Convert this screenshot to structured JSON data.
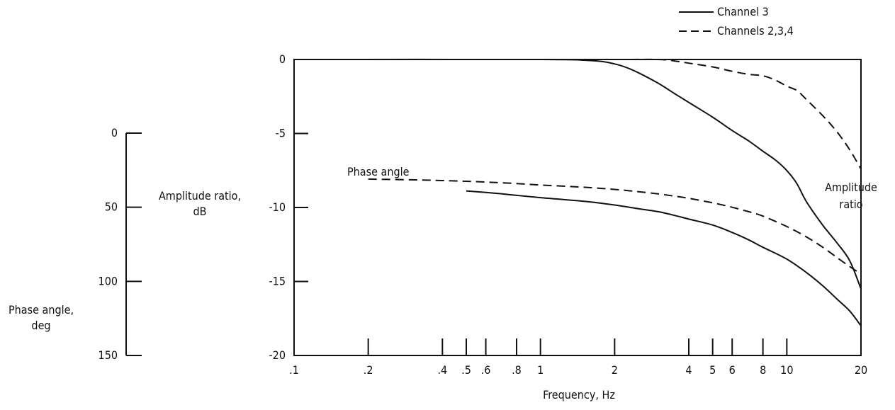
{
  "chart_data": {
    "type": "line",
    "legend": {
      "placement": "top-right",
      "entries": [
        {
          "label": "Channel 3",
          "style": "solid"
        },
        {
          "label": "Channels 2,3,4",
          "style": "dashed"
        }
      ]
    },
    "x_axis": {
      "label": "Frequency, Hz",
      "scale": "log",
      "range": [
        0.1,
        20
      ],
      "ticks": [
        0.1,
        0.2,
        0.4,
        0.5,
        0.6,
        0.8,
        1,
        2,
        4,
        5,
        6,
        8,
        10,
        20
      ],
      "tick_labels": [
        ".1",
        ".2",
        ".4",
        ".5",
        ".6",
        ".8",
        "1",
        "2",
        "4",
        "5",
        "6",
        "8",
        "10",
        "20"
      ]
    },
    "y_axis_amplitude": {
      "label_line1": "Amplitude ratio,",
      "label_line2": "dB",
      "range": [
        -20,
        0
      ],
      "ticks": [
        0,
        -5,
        -10,
        -15,
        -20
      ],
      "tick_labels": [
        "0",
        "-5",
        "-10",
        "-15",
        "-20"
      ]
    },
    "y_axis_phase": {
      "label_line1": "Phase angle,",
      "label_line2": "deg",
      "range": [
        0,
        150
      ],
      "ticks": [
        0,
        50,
        100,
        150
      ],
      "tick_labels": [
        "0",
        "50",
        "100",
        "150"
      ]
    },
    "annotations": {
      "phase_angle": "Phase angle",
      "amplitude_line1": "Amplitude",
      "amplitude_line2": "ratio"
    },
    "series": [
      {
        "name": "Channel 3",
        "quantity": "amplitude ratio",
        "style": "solid",
        "x": [
          0.1,
          1.0,
          1.5,
          1.8,
          2.0,
          2.2,
          2.5,
          3.0,
          3.5,
          4.0,
          5.0,
          6.0,
          7.0,
          8.0,
          9.0,
          10.0,
          11.0,
          12.0,
          14.0,
          16.0,
          18.0,
          20.0
        ],
        "y": [
          0,
          0,
          -0.05,
          -0.15,
          -0.3,
          -0.5,
          -0.9,
          -1.6,
          -2.3,
          -2.9,
          -3.9,
          -4.8,
          -5.5,
          -6.2,
          -6.8,
          -7.5,
          -8.4,
          -9.6,
          -11.2,
          -12.4,
          -13.6,
          -15.5
        ]
      },
      {
        "name": "Channels 2,3,4",
        "quantity": "amplitude ratio",
        "style": "dashed",
        "x": [
          0.1,
          1.0,
          2.0,
          3.0,
          3.5,
          4.0,
          5.0,
          6.0,
          7.0,
          8.0,
          9.0,
          10.0,
          11.0,
          12.0,
          14.0,
          16.0,
          18.0,
          20.0
        ],
        "y": [
          0,
          0,
          0,
          0,
          -0.1,
          -0.25,
          -0.5,
          -0.8,
          -1.0,
          -1.1,
          -1.4,
          -1.8,
          -2.1,
          -2.7,
          -3.8,
          -4.9,
          -6.1,
          -7.4
        ]
      },
      {
        "name": "Channel 3",
        "quantity": "phase angle",
        "style": "solid",
        "x": [
          0.5,
          0.6,
          0.7,
          0.8,
          1.0,
          1.5,
          2.0,
          2.5,
          3.0,
          3.5,
          4.0,
          5.0,
          6.0,
          7.0,
          8.0,
          10.0,
          12.0,
          14.0,
          16.0,
          18.0,
          20.0
        ],
        "y": [
          39,
          40,
          41,
          42,
          43.5,
          46,
          48.5,
          51,
          53,
          55.5,
          58,
          62,
          67,
          72,
          77,
          85,
          94,
          103,
          112,
          120,
          130
        ]
      },
      {
        "name": "Channels 2,3,4",
        "quantity": "phase angle",
        "style": "dashed",
        "x": [
          0.2,
          0.3,
          0.4,
          0.5,
          0.6,
          0.8,
          1.0,
          1.5,
          2.0,
          2.5,
          3.0,
          3.5,
          4.0,
          5.0,
          6.0,
          7.0,
          8.0,
          10.0,
          12.0,
          14.0,
          16.0,
          18.0,
          20.0
        ],
        "y": [
          31,
          31.5,
          32,
          32.5,
          33,
          34,
          35,
          36.5,
          38,
          39.5,
          41,
          42.5,
          44,
          47,
          50,
          53,
          56,
          63,
          70,
          77,
          84,
          90,
          95
        ]
      }
    ]
  }
}
